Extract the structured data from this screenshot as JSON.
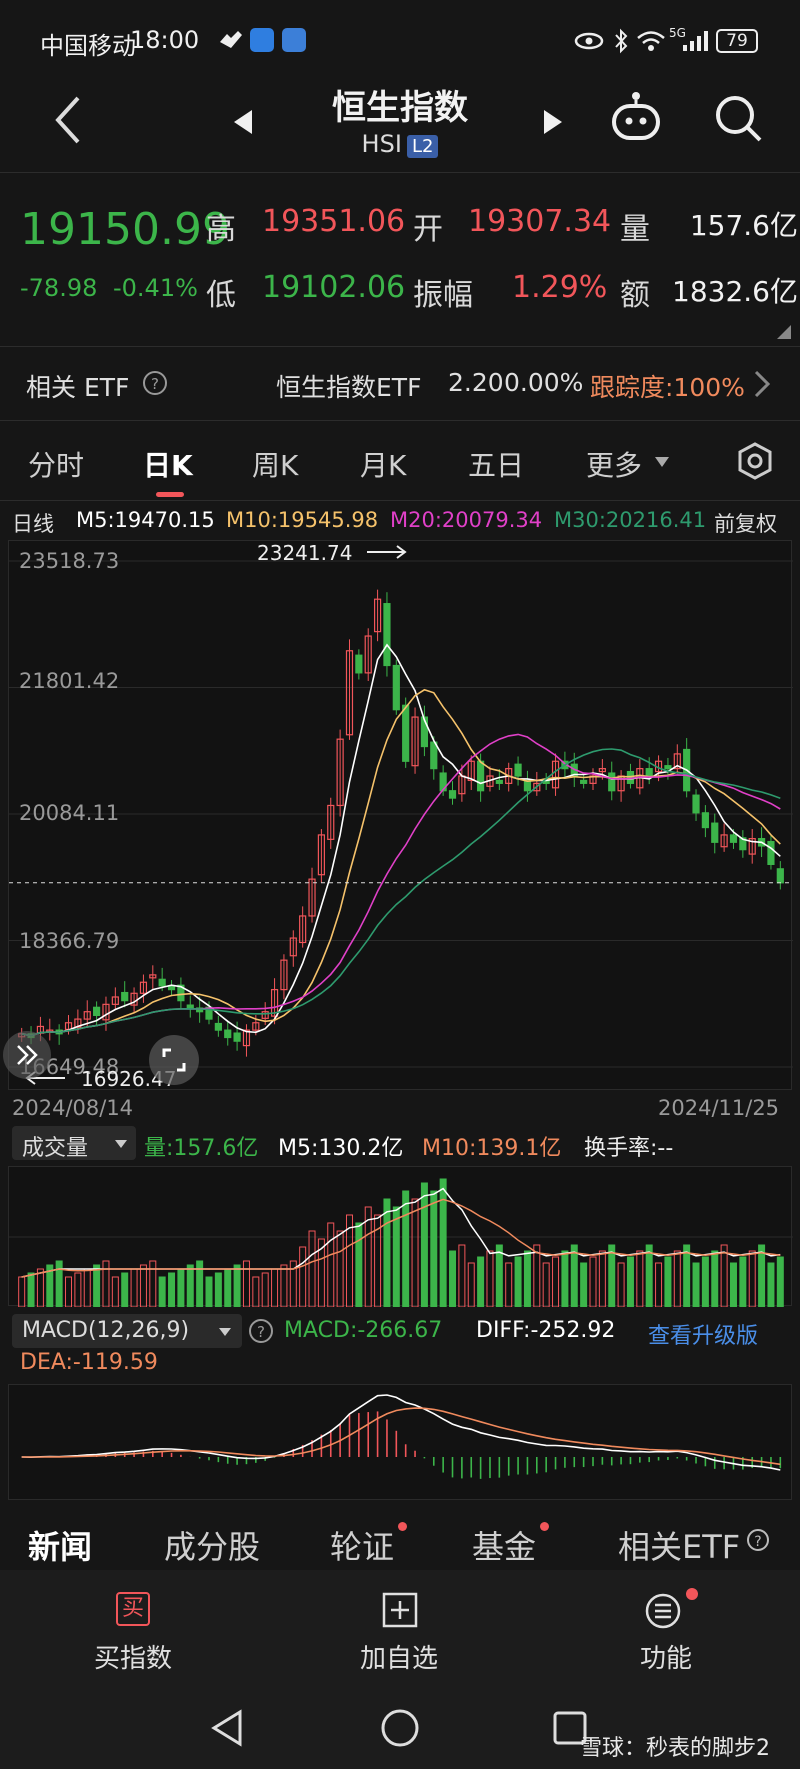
{
  "status_bar": {
    "carrier": "中国移动",
    "time": "18:00",
    "network": "5G",
    "battery": "79"
  },
  "header": {
    "title": "恒生指数",
    "subtitle": "HSI",
    "badge": "L2"
  },
  "quote": {
    "price": "19150.99",
    "change": "-78.98",
    "change_pct": "-0.41%",
    "high_label": "高",
    "high": "19351.06",
    "open_label": "开",
    "open": "19307.34",
    "volume_label": "量",
    "volume": "157.6亿",
    "low_label": "低",
    "low": "19102.06",
    "amplitude_label": "振幅",
    "amplitude": "1.29%",
    "amount_label": "额",
    "amount": "1832.6亿"
  },
  "etf": {
    "label": "相关 ETF",
    "name": "恒生指数ETF",
    "price": "2.20",
    "pct": "0.00%",
    "tracking": "跟踪度:100%"
  },
  "tabs": [
    "分时",
    "日K",
    "周K",
    "月K",
    "五日",
    "更多"
  ],
  "ma_line": {
    "label": "日线",
    "m5": "M5:19470.15",
    "m10": "M10:19545.98",
    "m20": "M20:20079.34",
    "m30": "M30:20216.41",
    "adjust": "前复权"
  },
  "colors": {
    "up": "#f2565a",
    "down": "#3cb54a",
    "m5": "#ffffff",
    "m10": "#f5c26b",
    "m20": "#e040c8",
    "m30": "#2e9b6e"
  },
  "chart_data": [
    {
      "type": "candlestick",
      "yticks": [
        "23518.73",
        "21801.42",
        "20084.11",
        "18366.79",
        "16649.48"
      ],
      "max_label": "23241.74",
      "min_label": "16926.47",
      "start_date": "2024/08/14",
      "end_date": "2024/11/25",
      "last_close": 19150.99,
      "ylim": [
        16649.48,
        23518.73
      ],
      "closes": [
        17100,
        17050,
        17200,
        17150,
        17100,
        17250,
        17300,
        17400,
        17350,
        17500,
        17600,
        17550,
        17650,
        17800,
        17900,
        17750,
        17700,
        17550,
        17450,
        17400,
        17300,
        17150,
        17050,
        17000,
        17150,
        17250,
        17400,
        17700,
        18100,
        18400,
        18700,
        19200,
        19800,
        20200,
        21100,
        22300,
        22000,
        22500,
        23000,
        22100,
        21500,
        20800,
        21400,
        21000,
        20700,
        20400,
        20300,
        20600,
        20800,
        20400,
        20600,
        20500,
        20700,
        20600,
        20400,
        20500,
        20500,
        20800,
        20700,
        20600,
        20500,
        20600,
        20700,
        20400,
        20600,
        20500,
        20700,
        20600,
        20800,
        20700,
        20900,
        20400,
        20100,
        19900,
        19700,
        19800,
        19700,
        19600,
        19750,
        19650,
        19400,
        19150
      ]
    },
    {
      "type": "bar",
      "label": "成交量",
      "series_label": "量:157.6亿",
      "m5": "M5:130.2亿",
      "m10": "M10:139.1亿",
      "turnover": "换手率:--"
    },
    {
      "type": "bar",
      "label": "MACD(12,26,9)",
      "macd": "MACD:-266.67",
      "diff": "DIFF:-252.92",
      "dea": "DEA:-119.59",
      "upgrade": "查看升级版"
    }
  ],
  "bottom_tabs": [
    "新闻",
    "成分股",
    "轮证",
    "基金",
    "相关ETF"
  ],
  "nav": {
    "buy": "买指数",
    "buy_icon": "买",
    "add": "加自选",
    "func": "功能"
  },
  "watermark": "雪球：秒表的脚步2"
}
